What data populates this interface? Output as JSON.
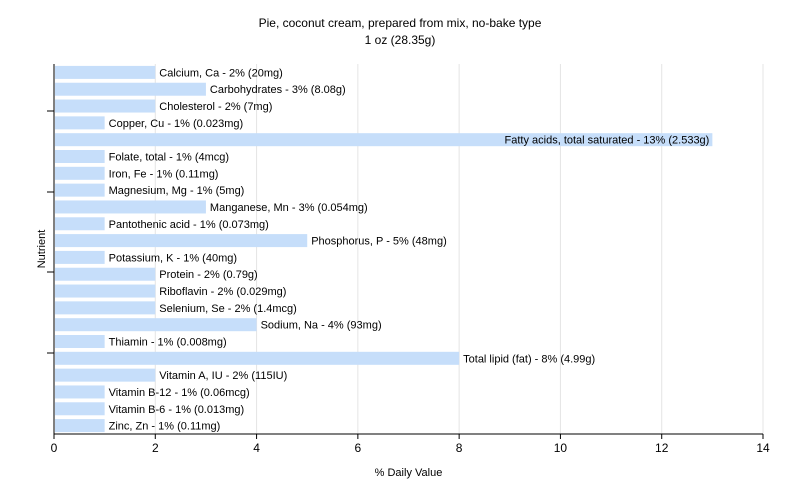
{
  "chart_data": {
    "type": "bar",
    "orientation": "horizontal",
    "title": "Pie, coconut cream, prepared from mix, no-bake type",
    "subtitle": "1 oz (28.35g)",
    "xlabel": "% Daily Value",
    "ylabel": "Nutrient",
    "xlim": [
      0,
      14
    ],
    "xticks": [
      0,
      2,
      4,
      6,
      8,
      10,
      12,
      14
    ],
    "grid": true,
    "bar_color": "#c6defa",
    "categories": [
      "Calcium, Ca",
      "Carbohydrates",
      "Cholesterol",
      "Copper, Cu",
      "Fatty acids, total saturated",
      "Folate, total",
      "Iron, Fe",
      "Magnesium, Mg",
      "Manganese, Mn",
      "Pantothenic acid",
      "Phosphorus, P",
      "Potassium, K",
      "Protein",
      "Riboflavin",
      "Selenium, Se",
      "Sodium, Na",
      "Thiamin",
      "Total lipid (fat)",
      "Vitamin A, IU",
      "Vitamin B-12",
      "Vitamin B-6",
      "Zinc, Zn"
    ],
    "values": [
      2,
      3,
      2,
      1,
      13,
      1,
      1,
      1,
      3,
      1,
      5,
      1,
      2,
      2,
      2,
      4,
      1,
      8,
      2,
      1,
      1,
      1
    ],
    "bar_labels": [
      "Calcium, Ca - 2% (20mg)",
      "Carbohydrates - 3% (8.08g)",
      "Cholesterol - 2% (7mg)",
      "Copper, Cu - 1% (0.023mg)",
      "Fatty acids, total saturated - 13% (2.533g)",
      "Folate, total - 1% (4mcg)",
      "Iron, Fe - 1% (0.11mg)",
      "Magnesium, Mg - 1% (5mg)",
      "Manganese, Mn - 3% (0.054mg)",
      "Pantothenic acid - 1% (0.073mg)",
      "Phosphorus, P - 5% (48mg)",
      "Potassium, K - 1% (40mg)",
      "Protein - 2% (0.79g)",
      "Riboflavin - 2% (0.029mg)",
      "Selenium, Se - 2% (1.4mcg)",
      "Sodium, Na - 4% (93mg)",
      "Thiamin - 1% (0.008mg)",
      "Total lipid (fat) - 8% (4.99g)",
      "Vitamin A, IU - 2% (115IU)",
      "Vitamin B-12 - 1% (0.06mcg)",
      "Vitamin B-6 - 1% (0.013mg)",
      "Zinc, Zn - 1% (0.11mg)"
    ]
  }
}
